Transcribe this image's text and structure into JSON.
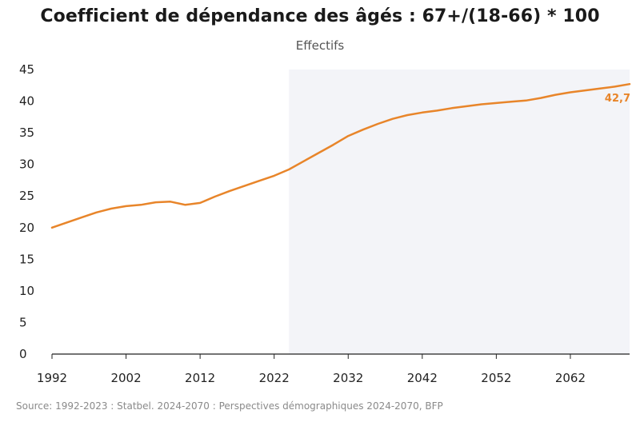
{
  "chart_data": {
    "type": "line",
    "title": "Coefficient de dépendance des âgés : 67+/(18-66) * 100",
    "subtitle": "Effectifs",
    "xlabel": "",
    "ylabel": "",
    "ylim": [
      0,
      45
    ],
    "xlim": [
      1992,
      2070
    ],
    "y_ticks": [
      0,
      5,
      10,
      15,
      20,
      25,
      30,
      35,
      40,
      45
    ],
    "x_ticks": [
      "1992",
      "2002",
      "2012",
      "2022",
      "2032",
      "2042",
      "2052",
      "2062"
    ],
    "projection_shade_start": 2024,
    "line_color": "#e8852a",
    "shade_color": "#f3f4f8",
    "series": [
      {
        "name": "Coefficient de dépendance des âgés",
        "x": [
          1992,
          1994,
          1996,
          1998,
          2000,
          2002,
          2004,
          2006,
          2008,
          2010,
          2012,
          2014,
          2016,
          2018,
          2020,
          2022,
          2024,
          2026,
          2028,
          2030,
          2032,
          2034,
          2036,
          2038,
          2040,
          2042,
          2044,
          2046,
          2048,
          2050,
          2052,
          2054,
          2056,
          2058,
          2060,
          2062,
          2064,
          2066,
          2068,
          2070
        ],
        "values": [
          20.0,
          20.8,
          21.6,
          22.4,
          23.0,
          23.4,
          23.6,
          24.0,
          24.1,
          23.6,
          23.9,
          24.9,
          25.8,
          26.6,
          27.4,
          28.2,
          29.2,
          30.5,
          31.8,
          33.1,
          34.5,
          35.5,
          36.4,
          37.2,
          37.8,
          38.2,
          38.5,
          38.9,
          39.2,
          39.5,
          39.7,
          39.9,
          40.1,
          40.5,
          41.0,
          41.4,
          41.7,
          42.0,
          42.3,
          42.7
        ]
      }
    ],
    "end_label": "42,7"
  },
  "source": "Source: 1992-2023 : Statbel. 2024-2070 : Perspectives démographiques 2024-2070, BFP"
}
